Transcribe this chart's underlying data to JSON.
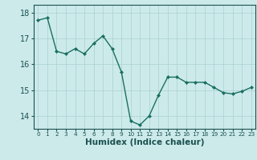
{
  "x": [
    0,
    1,
    2,
    3,
    4,
    5,
    6,
    7,
    8,
    9,
    10,
    11,
    12,
    13,
    14,
    15,
    16,
    17,
    18,
    19,
    20,
    21,
    22,
    23
  ],
  "y": [
    17.7,
    17.8,
    16.5,
    16.4,
    16.6,
    16.4,
    16.8,
    17.1,
    16.6,
    15.7,
    13.8,
    13.65,
    14.0,
    14.8,
    15.5,
    15.5,
    15.3,
    15.3,
    15.3,
    15.1,
    14.9,
    14.85,
    14.95,
    15.1
  ],
  "xlabel": "Humidex (Indice chaleur)",
  "ylim": [
    13.5,
    18.3
  ],
  "xlim": [
    -0.5,
    23.5
  ],
  "yticks": [
    14,
    15,
    16,
    17,
    18
  ],
  "xticks": [
    0,
    1,
    2,
    3,
    4,
    5,
    6,
    7,
    8,
    9,
    10,
    11,
    12,
    13,
    14,
    15,
    16,
    17,
    18,
    19,
    20,
    21,
    22,
    23
  ],
  "line_color": "#1a7060",
  "marker_color": "#1a7060",
  "bg_color": "#cdeaea",
  "grid_color": "#aed4d4",
  "tick_color": "#1a5050",
  "xlabel_color": "#1a5050",
  "xlabel_fontsize": 7.5,
  "ytick_fontsize": 7,
  "xtick_fontsize": 5.2
}
